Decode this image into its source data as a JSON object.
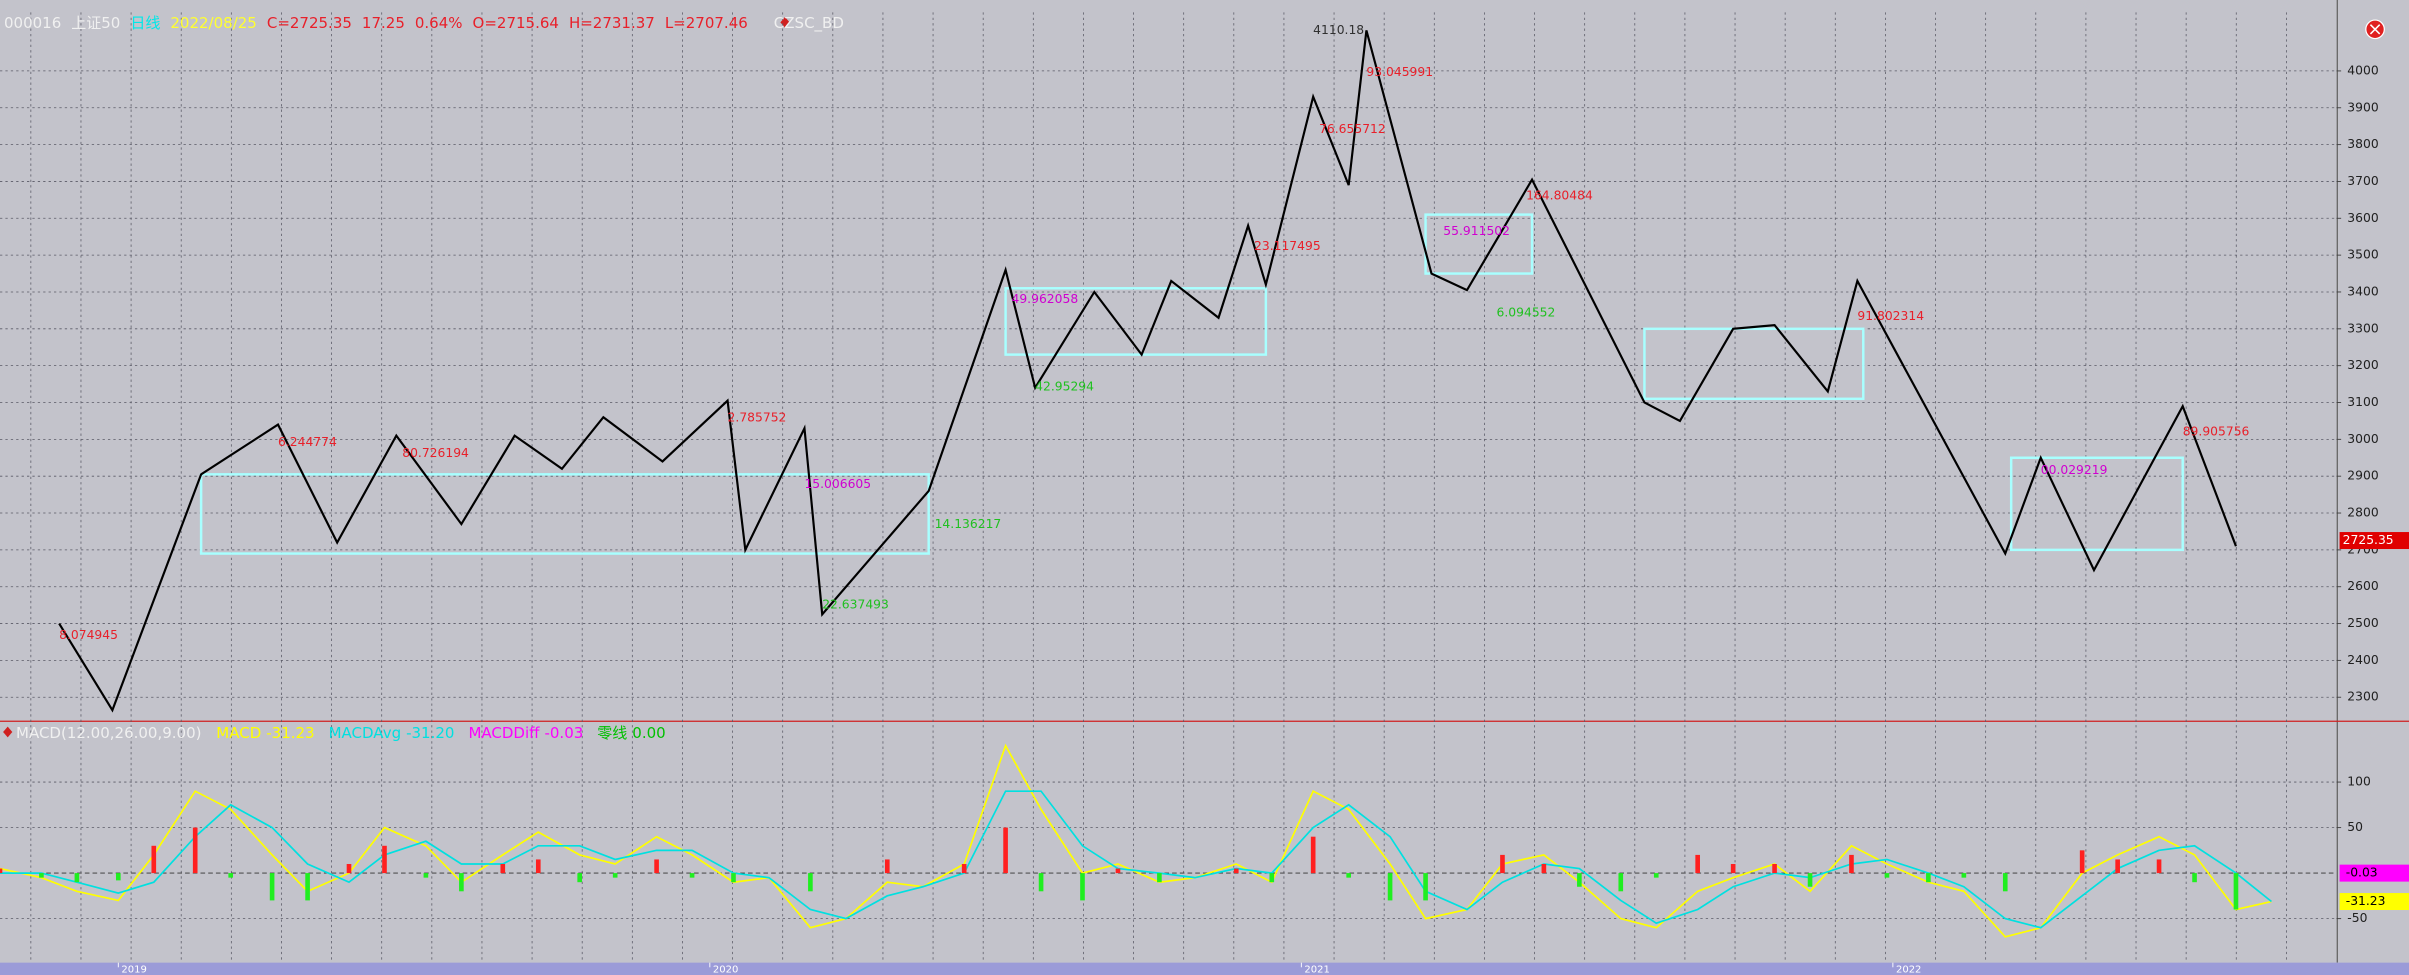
{
  "header": {
    "code": "000016",
    "name": "上证50",
    "period": "日线",
    "date": "2022/08/25",
    "close": "C=2725.35",
    "change": "17.25",
    "pct": "0.64%",
    "open": "O=2715.64",
    "high": "H=2731.37",
    "low": "L=2707.46",
    "indicator": "CZSC_BD"
  },
  "chart_data": [
    {
      "type": "line",
      "color": "#000000",
      "x": [
        2018.9,
        2018.99,
        2019.14,
        2019.27,
        2019.37,
        2019.47,
        2019.58,
        2019.67,
        2019.75,
        2019.82,
        2019.92,
        2020.03,
        2020.06,
        2020.16,
        2020.19,
        2020.37,
        2020.5,
        2020.55,
        2020.65,
        2020.73,
        2020.78,
        2020.86,
        2020.91,
        2020.94,
        2021.02,
        2021.08,
        2021.11,
        2021.22,
        2021.28,
        2021.39,
        2021.58,
        2021.64,
        2021.73,
        2021.8,
        2021.89,
        2021.94,
        2022.19,
        2022.25,
        2022.34,
        2022.49,
        2022.58
      ],
      "values": [
        2500,
        2265,
        2905,
        3040,
        2720,
        3010,
        2770,
        3010,
        2920,
        3060,
        2940,
        3105,
        2700,
        3030,
        2525,
        2860,
        3460,
        3140,
        3400,
        3230,
        3430,
        3330,
        3580,
        3420,
        3930,
        3690,
        4110,
        3450,
        3405,
        3705,
        3100,
        3050,
        3300,
        3310,
        3130,
        3430,
        2690,
        2950,
        2645,
        3090,
        2710
      ],
      "boxes": [
        {
          "x": [
            2019.14,
            2020.37
          ],
          "y": [
            2690,
            2905
          ]
        },
        {
          "x": [
            2020.5,
            2020.94
          ],
          "y": [
            3230,
            3410
          ]
        },
        {
          "x": [
            2021.21,
            2021.39
          ],
          "y": [
            3450,
            3610
          ]
        },
        {
          "x": [
            2021.58,
            2021.95
          ],
          "y": [
            3110,
            3300
          ]
        },
        {
          "x": [
            2022.2,
            2022.49
          ],
          "y": [
            2700,
            2950
          ]
        }
      ],
      "box_color": "#a8ffff",
      "annotations": [
        {
          "text": "4110.18",
          "x": 2021.02,
          "y": 4110,
          "color": "#303030"
        },
        {
          "text": "8.074945",
          "x": 2018.9,
          "y": 2467,
          "color": "#e8202a"
        },
        {
          "text": "6.244774",
          "x": 2019.27,
          "y": 2991,
          "color": "#e8202a"
        },
        {
          "text": "80.726194",
          "x": 2019.48,
          "y": 2961,
          "color": "#e8202a"
        },
        {
          "text": "2.785752",
          "x": 2020.03,
          "y": 3058,
          "color": "#e8202a"
        },
        {
          "text": "15.006605",
          "x": 2020.16,
          "y": 2878,
          "color": "#d000d0"
        },
        {
          "text": "22.637493",
          "x": 2020.19,
          "y": 2551,
          "color": "#20c020"
        },
        {
          "text": "14.136217",
          "x": 2020.38,
          "y": 2769,
          "color": "#20c020"
        },
        {
          "text": "49.962058",
          "x": 2020.51,
          "y": 3380,
          "color": "#d000d0"
        },
        {
          "text": "42.95294",
          "x": 2020.55,
          "y": 3142,
          "color": "#20c020"
        },
        {
          "text": "23.117495",
          "x": 2020.92,
          "y": 3523,
          "color": "#e8202a"
        },
        {
          "text": "76.655712",
          "x": 2021.03,
          "y": 3841,
          "color": "#e8202a"
        },
        {
          "text": "93.045991",
          "x": 2021.11,
          "y": 3996,
          "color": "#e8202a"
        },
        {
          "text": "55.911502",
          "x": 2021.24,
          "y": 3564,
          "color": "#d000d0"
        },
        {
          "text": "6.094552",
          "x": 2021.33,
          "y": 3343,
          "color": "#20c020"
        },
        {
          "text": "164.80484",
          "x": 2021.38,
          "y": 3661,
          "color": "#e8202a"
        },
        {
          "text": "91.802314",
          "x": 2021.94,
          "y": 3334,
          "color": "#e8202a"
        },
        {
          "text": "00.029219",
          "x": 2022.25,
          "y": 2915,
          "color": "#d000d0"
        },
        {
          "text": "89.905756",
          "x": 2022.49,
          "y": 3020,
          "color": "#e8202a"
        }
      ],
      "last_price": 2725.35,
      "xlim": [
        2018.8,
        2022.75
      ],
      "xticks": [
        2019,
        2020,
        2021,
        2022
      ],
      "ylim": [
        2237,
        4159
      ],
      "yticks": [
        2300,
        2400,
        2500,
        2600,
        2700,
        2800,
        2900,
        3000,
        3100,
        3200,
        3300,
        3400,
        3500,
        3600,
        3700,
        3800,
        3900,
        4000
      ],
      "grid": true
    },
    {
      "type": "macd",
      "title": "MACD(12.00,26.00,9.00)",
      "x": [
        2018.8,
        2018.87,
        2018.93,
        2019.0,
        2019.06,
        2019.13,
        2019.19,
        2019.26,
        2019.32,
        2019.39,
        2019.45,
        2019.52,
        2019.58,
        2019.65,
        2019.71,
        2019.78,
        2019.84,
        2019.91,
        2019.97,
        2020.04,
        2020.1,
        2020.17,
        2020.23,
        2020.3,
        2020.36,
        2020.43,
        2020.5,
        2020.56,
        2020.63,
        2020.69,
        2020.76,
        2020.82,
        2020.89,
        2020.95,
        2021.02,
        2021.08,
        2021.15,
        2021.21,
        2021.28,
        2021.34,
        2021.41,
        2021.47,
        2021.54,
        2021.6,
        2021.67,
        2021.73,
        2021.8,
        2021.86,
        2021.93,
        2021.99,
        2022.06,
        2022.12,
        2022.19,
        2022.25,
        2022.32,
        2022.38,
        2022.45,
        2022.51,
        2022.58,
        2022.64
      ],
      "series": [
        {
          "name": "MACD",
          "color": "#ffff00",
          "last_label": "-31.23",
          "values": [
            5,
            -5,
            -20,
            -30,
            20,
            90,
            70,
            20,
            -20,
            0,
            50,
            30,
            -10,
            20,
            45,
            20,
            10,
            40,
            20,
            -10,
            -5,
            -60,
            -50,
            -10,
            -15,
            10,
            140,
            70,
            0,
            10,
            -10,
            -5,
            10,
            -10,
            90,
            70,
            10,
            -50,
            -40,
            10,
            20,
            -10,
            -50,
            -60,
            -20,
            -5,
            10,
            -20,
            30,
            10,
            -10,
            -20,
            -70,
            -60,
            0,
            20,
            40,
            20,
            -40,
            -31.23
          ]
        },
        {
          "name": "MACDAvg",
          "color": "#00e0e0",
          "last_label": "-31.20",
          "values": [
            0,
            0,
            -10,
            -22,
            -10,
            40,
            75,
            50,
            10,
            -10,
            20,
            35,
            10,
            10,
            30,
            30,
            15,
            25,
            25,
            0,
            -5,
            -40,
            -50,
            -25,
            -15,
            0,
            90,
            90,
            30,
            5,
            0,
            -5,
            5,
            0,
            50,
            75,
            40,
            -20,
            -40,
            -10,
            10,
            5,
            -30,
            -55,
            -40,
            -15,
            0,
            -5,
            10,
            15,
            0,
            -15,
            -50,
            -60,
            -25,
            5,
            25,
            30,
            0,
            -31.2
          ]
        },
        {
          "name": "MACDDiff",
          "color": "#ff00ff",
          "up_color": "#ff2020",
          "down_color": "#20ee20",
          "last_label": "-0.03",
          "values": [
            5,
            -5,
            -10,
            -8,
            30,
            50,
            -5,
            -30,
            -30,
            10,
            30,
            -5,
            -20,
            10,
            15,
            -10,
            -5,
            15,
            -5,
            -10,
            0,
            -20,
            0,
            15,
            0,
            10,
            50,
            -20,
            -30,
            5,
            -10,
            0,
            5,
            -10,
            40,
            -5,
            -30,
            -30,
            0,
            20,
            10,
            -15,
            -20,
            -5,
            20,
            10,
            10,
            -15,
            20,
            -5,
            -10,
            -5,
            -20,
            0,
            25,
            15,
            15,
            -10,
            -40,
            -0.03
          ]
        }
      ],
      "zero_line": {
        "name": "零线",
        "value": 0,
        "label": "0.00",
        "color": "#00c000"
      },
      "xlim": [
        2018.8,
        2022.75
      ],
      "ylim": [
        -95,
        166
      ],
      "yticks": [
        -50,
        50,
        100
      ],
      "grid": true
    }
  ]
}
